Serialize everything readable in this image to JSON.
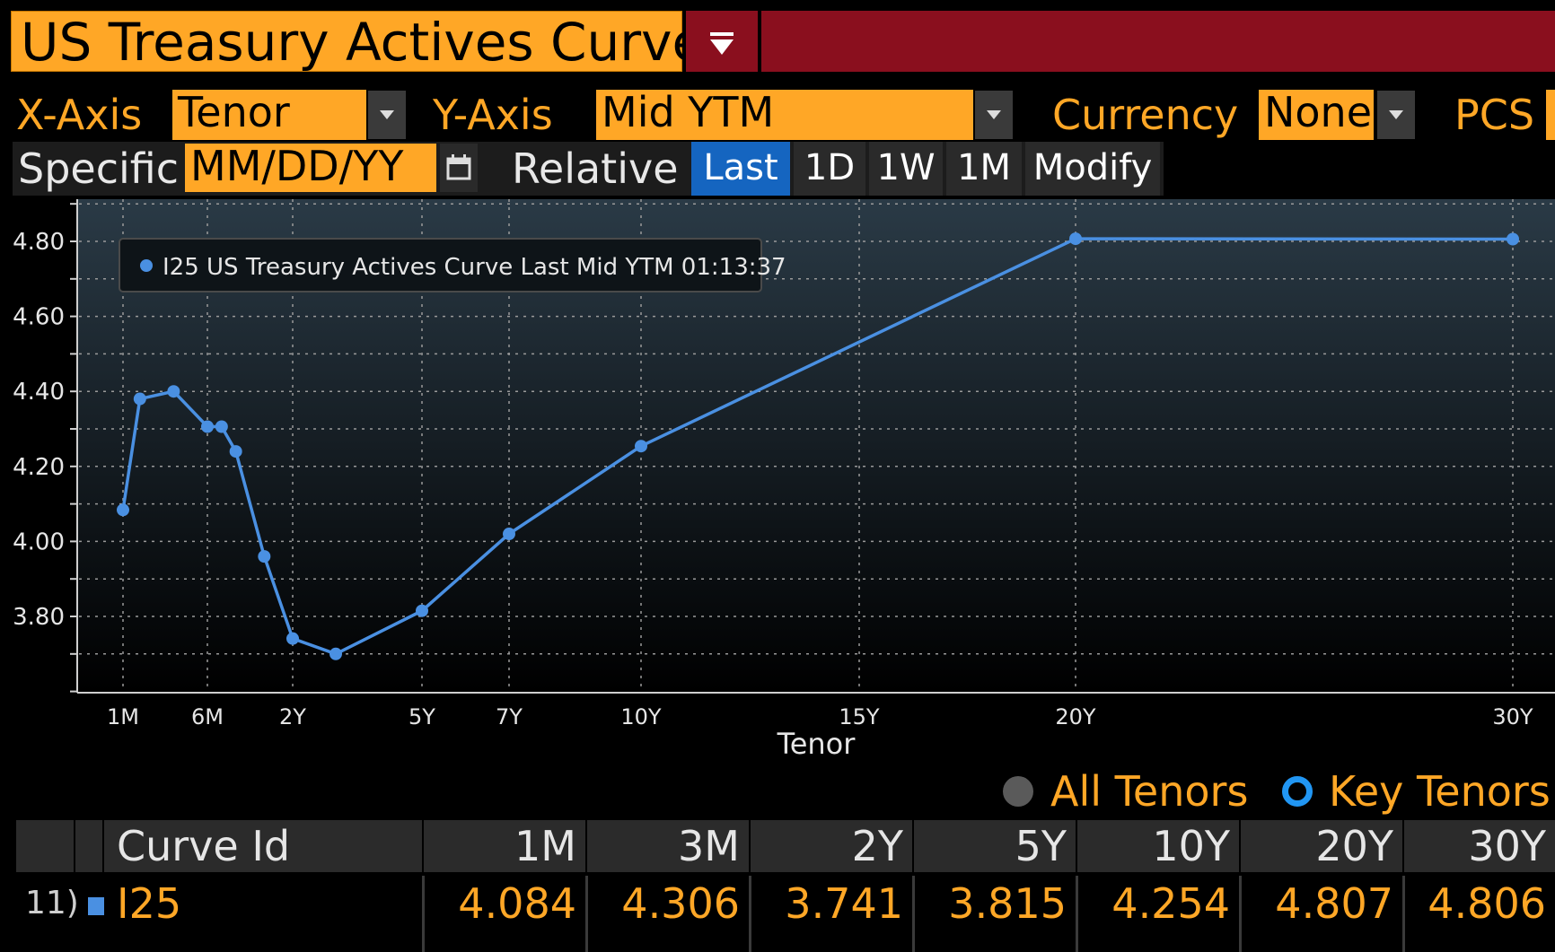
{
  "window": {
    "title": "US Treasury Actives Curve"
  },
  "controls": {
    "x_axis_label": "X-Axis",
    "x_axis_value": "Tenor",
    "y_axis_label": "Y-Axis",
    "y_axis_value": "Mid YTM",
    "currency_label": "Currency",
    "currency_value": "None",
    "pcs_label": "PCS",
    "specific_label": "Specific",
    "date_placeholder": "MM/DD/YY",
    "relative_label": "Relative",
    "buttons": [
      "Last",
      "1D",
      "1W",
      "1M",
      "Modify"
    ],
    "active_button": "Last"
  },
  "chart_data": {
    "type": "line",
    "xlabel": "Tenor",
    "ylabel": "",
    "ylim": [
      3.6,
      4.9
    ],
    "y_ticks": [
      "4.80",
      "4.60",
      "4.40",
      "4.20",
      "4.00",
      "3.80"
    ],
    "x_ticks": [
      "1M",
      "6M",
      "2Y",
      "5Y",
      "7Y",
      "10Y",
      "15Y",
      "20Y",
      "30Y"
    ],
    "x_tick_years": [
      0.0833,
      0.5,
      2,
      5,
      7,
      10,
      15,
      20,
      30
    ],
    "grid": true,
    "legend_position": "top-left",
    "series": [
      {
        "name": "I25 US Treasury Actives Curve Last Mid YTM 01:13:37",
        "color": "#4a90e2",
        "x": [
          0.0833,
          0.1667,
          0.3333,
          0.5,
          0.75,
          1.0,
          1.5,
          2.0,
          3.0,
          5.0,
          7.0,
          10.0,
          20.0,
          30.0
        ],
        "values": [
          4.084,
          4.38,
          4.4,
          4.306,
          4.306,
          4.24,
          3.96,
          3.741,
          3.7,
          3.815,
          4.02,
          4.254,
          4.807,
          4.806
        ]
      }
    ]
  },
  "legend_toggle": {
    "all_label": "All Tenors",
    "key_label": "Key Tenors"
  },
  "table": {
    "headers": [
      "Curve Id",
      "1M",
      "3M",
      "2Y",
      "5Y",
      "10Y",
      "20Y",
      "30Y"
    ],
    "row": {
      "index": "11)",
      "curve_id": "I25",
      "values": [
        "4.084",
        "4.306",
        "3.741",
        "3.815",
        "4.254",
        "4.807",
        "4.806"
      ],
      "swatch_color": "#4a90e2"
    }
  }
}
